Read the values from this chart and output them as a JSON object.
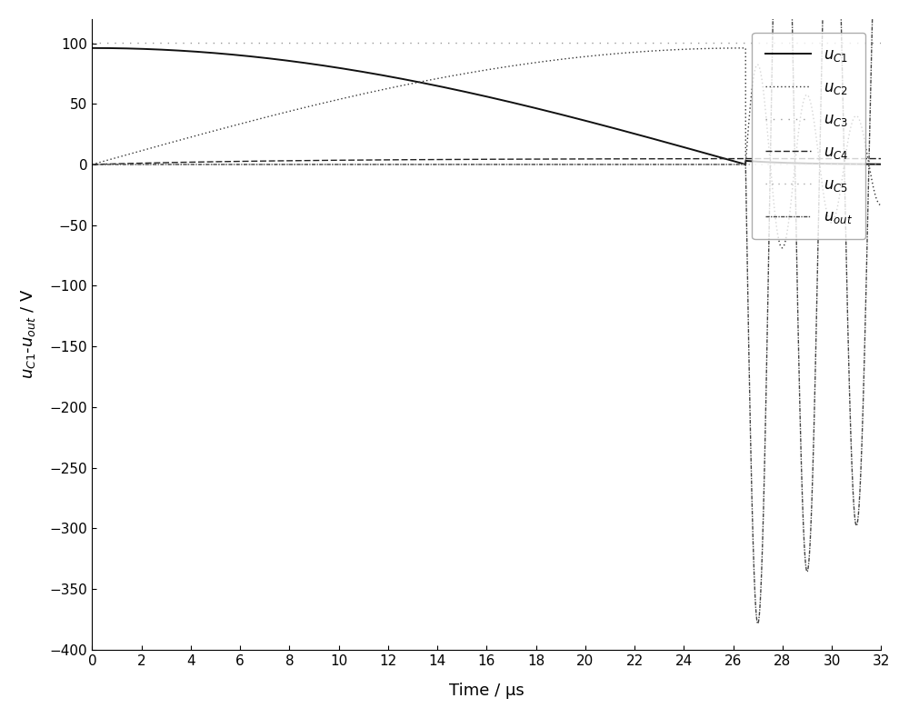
{
  "xlim": [
    0,
    32
  ],
  "ylim": [
    -400,
    120
  ],
  "xticks": [
    0,
    2,
    4,
    6,
    8,
    10,
    12,
    14,
    16,
    18,
    20,
    22,
    24,
    26,
    28,
    30,
    32
  ],
  "yticks": [
    100,
    50,
    0,
    -50,
    -100,
    -150,
    -200,
    -250,
    -300,
    -350,
    -400
  ],
  "xlabel": "Time / μs",
  "ylabel": "$u_{C1}$-$u_{out}$ / V",
  "background_color": "#ffffff",
  "legend_labels": [
    "$u_{C1}$",
    "$u_{C2}$",
    "$u_{C3}$",
    "$u_{C4}$",
    "$u_{C5}$",
    "$u_{out}$"
  ],
  "switch_time": 26.5,
  "uC1_init": 96,
  "uC3_level": 100,
  "osc_freq": 0.5,
  "osc_amp_uC2": 90,
  "osc_amp_uout": 390,
  "decay_uC2": 0.18,
  "decay_uout": 0.06,
  "uC4_max": 5.0,
  "uC4_curve": 0.12
}
